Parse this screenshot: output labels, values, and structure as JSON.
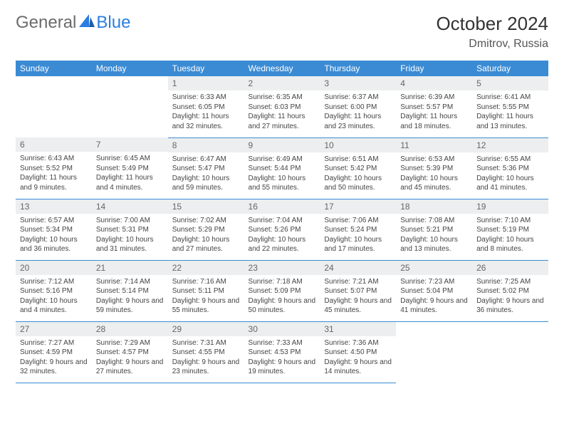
{
  "brand": {
    "text1": "General",
    "text2": "Blue"
  },
  "title": "October 2024",
  "location": "Dmitrov, Russia",
  "colors": {
    "header_bg": "#3b8bd4",
    "header_text": "#ffffff",
    "daynum_bg": "#eceeef",
    "daynum_text": "#666666",
    "body_text": "#444444",
    "border": "#3b8bd4",
    "logo_gray": "#6b6b6b",
    "logo_blue": "#2a7de1"
  },
  "weekdays": [
    "Sunday",
    "Monday",
    "Tuesday",
    "Wednesday",
    "Thursday",
    "Friday",
    "Saturday"
  ],
  "weeks": [
    [
      {
        "empty": true
      },
      {
        "empty": true
      },
      {
        "n": "1",
        "sr": "Sunrise: 6:33 AM",
        "ss": "Sunset: 6:05 PM",
        "dl": "Daylight: 11 hours and 32 minutes."
      },
      {
        "n": "2",
        "sr": "Sunrise: 6:35 AM",
        "ss": "Sunset: 6:03 PM",
        "dl": "Daylight: 11 hours and 27 minutes."
      },
      {
        "n": "3",
        "sr": "Sunrise: 6:37 AM",
        "ss": "Sunset: 6:00 PM",
        "dl": "Daylight: 11 hours and 23 minutes."
      },
      {
        "n": "4",
        "sr": "Sunrise: 6:39 AM",
        "ss": "Sunset: 5:57 PM",
        "dl": "Daylight: 11 hours and 18 minutes."
      },
      {
        "n": "5",
        "sr": "Sunrise: 6:41 AM",
        "ss": "Sunset: 5:55 PM",
        "dl": "Daylight: 11 hours and 13 minutes."
      }
    ],
    [
      {
        "n": "6",
        "sr": "Sunrise: 6:43 AM",
        "ss": "Sunset: 5:52 PM",
        "dl": "Daylight: 11 hours and 9 minutes."
      },
      {
        "n": "7",
        "sr": "Sunrise: 6:45 AM",
        "ss": "Sunset: 5:49 PM",
        "dl": "Daylight: 11 hours and 4 minutes."
      },
      {
        "n": "8",
        "sr": "Sunrise: 6:47 AM",
        "ss": "Sunset: 5:47 PM",
        "dl": "Daylight: 10 hours and 59 minutes."
      },
      {
        "n": "9",
        "sr": "Sunrise: 6:49 AM",
        "ss": "Sunset: 5:44 PM",
        "dl": "Daylight: 10 hours and 55 minutes."
      },
      {
        "n": "10",
        "sr": "Sunrise: 6:51 AM",
        "ss": "Sunset: 5:42 PM",
        "dl": "Daylight: 10 hours and 50 minutes."
      },
      {
        "n": "11",
        "sr": "Sunrise: 6:53 AM",
        "ss": "Sunset: 5:39 PM",
        "dl": "Daylight: 10 hours and 45 minutes."
      },
      {
        "n": "12",
        "sr": "Sunrise: 6:55 AM",
        "ss": "Sunset: 5:36 PM",
        "dl": "Daylight: 10 hours and 41 minutes."
      }
    ],
    [
      {
        "n": "13",
        "sr": "Sunrise: 6:57 AM",
        "ss": "Sunset: 5:34 PM",
        "dl": "Daylight: 10 hours and 36 minutes."
      },
      {
        "n": "14",
        "sr": "Sunrise: 7:00 AM",
        "ss": "Sunset: 5:31 PM",
        "dl": "Daylight: 10 hours and 31 minutes."
      },
      {
        "n": "15",
        "sr": "Sunrise: 7:02 AM",
        "ss": "Sunset: 5:29 PM",
        "dl": "Daylight: 10 hours and 27 minutes."
      },
      {
        "n": "16",
        "sr": "Sunrise: 7:04 AM",
        "ss": "Sunset: 5:26 PM",
        "dl": "Daylight: 10 hours and 22 minutes."
      },
      {
        "n": "17",
        "sr": "Sunrise: 7:06 AM",
        "ss": "Sunset: 5:24 PM",
        "dl": "Daylight: 10 hours and 17 minutes."
      },
      {
        "n": "18",
        "sr": "Sunrise: 7:08 AM",
        "ss": "Sunset: 5:21 PM",
        "dl": "Daylight: 10 hours and 13 minutes."
      },
      {
        "n": "19",
        "sr": "Sunrise: 7:10 AM",
        "ss": "Sunset: 5:19 PM",
        "dl": "Daylight: 10 hours and 8 minutes."
      }
    ],
    [
      {
        "n": "20",
        "sr": "Sunrise: 7:12 AM",
        "ss": "Sunset: 5:16 PM",
        "dl": "Daylight: 10 hours and 4 minutes."
      },
      {
        "n": "21",
        "sr": "Sunrise: 7:14 AM",
        "ss": "Sunset: 5:14 PM",
        "dl": "Daylight: 9 hours and 59 minutes."
      },
      {
        "n": "22",
        "sr": "Sunrise: 7:16 AM",
        "ss": "Sunset: 5:11 PM",
        "dl": "Daylight: 9 hours and 55 minutes."
      },
      {
        "n": "23",
        "sr": "Sunrise: 7:18 AM",
        "ss": "Sunset: 5:09 PM",
        "dl": "Daylight: 9 hours and 50 minutes."
      },
      {
        "n": "24",
        "sr": "Sunrise: 7:21 AM",
        "ss": "Sunset: 5:07 PM",
        "dl": "Daylight: 9 hours and 45 minutes."
      },
      {
        "n": "25",
        "sr": "Sunrise: 7:23 AM",
        "ss": "Sunset: 5:04 PM",
        "dl": "Daylight: 9 hours and 41 minutes."
      },
      {
        "n": "26",
        "sr": "Sunrise: 7:25 AM",
        "ss": "Sunset: 5:02 PM",
        "dl": "Daylight: 9 hours and 36 minutes."
      }
    ],
    [
      {
        "n": "27",
        "sr": "Sunrise: 7:27 AM",
        "ss": "Sunset: 4:59 PM",
        "dl": "Daylight: 9 hours and 32 minutes."
      },
      {
        "n": "28",
        "sr": "Sunrise: 7:29 AM",
        "ss": "Sunset: 4:57 PM",
        "dl": "Daylight: 9 hours and 27 minutes."
      },
      {
        "n": "29",
        "sr": "Sunrise: 7:31 AM",
        "ss": "Sunset: 4:55 PM",
        "dl": "Daylight: 9 hours and 23 minutes."
      },
      {
        "n": "30",
        "sr": "Sunrise: 7:33 AM",
        "ss": "Sunset: 4:53 PM",
        "dl": "Daylight: 9 hours and 19 minutes."
      },
      {
        "n": "31",
        "sr": "Sunrise: 7:36 AM",
        "ss": "Sunset: 4:50 PM",
        "dl": "Daylight: 9 hours and 14 minutes."
      },
      {
        "empty": true
      },
      {
        "empty": true
      }
    ]
  ]
}
